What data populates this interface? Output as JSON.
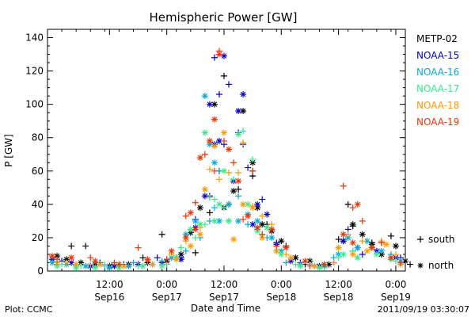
{
  "chart_data": {
    "type": "scatter",
    "title": "Hemispheric Power [GW]",
    "xlabel": "Date and Time",
    "ylabel": "P [GW]",
    "ylim": [
      0,
      145
    ],
    "xlim_hours": [
      0,
      75
    ],
    "yticks": [
      0,
      20,
      40,
      60,
      80,
      100,
      120,
      140
    ],
    "xticks": [
      {
        "t": 13,
        "time": "12:00",
        "date": "Sep16"
      },
      {
        "t": 25,
        "time": "0:00",
        "date": "Sep17"
      },
      {
        "t": 37,
        "time": "12:00",
        "date": "Sep17"
      },
      {
        "t": 49,
        "time": "0:00",
        "date": "Sep18"
      },
      {
        "t": 61,
        "time": "12:00",
        "date": "Sep18"
      },
      {
        "t": 73,
        "time": "0:00",
        "date": "Sep19"
      }
    ],
    "legend_position": "right",
    "series": [
      {
        "name": "METP-02",
        "color": "#000000",
        "south": [
          [
            5,
            15
          ],
          [
            8,
            15
          ],
          [
            20,
            8
          ],
          [
            24,
            22
          ],
          [
            27,
            8
          ],
          [
            31,
            11
          ],
          [
            34,
            35
          ],
          [
            36,
            60
          ],
          [
            37,
            117
          ],
          [
            38,
            40
          ],
          [
            40,
            49
          ],
          [
            43,
            57
          ],
          [
            46,
            28
          ],
          [
            50,
            15
          ],
          [
            54,
            4
          ],
          [
            58,
            3
          ],
          [
            61,
            19
          ],
          [
            63,
            40
          ],
          [
            64,
            27
          ],
          [
            68,
            17
          ],
          [
            72,
            21
          ],
          [
            76,
            4
          ]
        ],
        "north": [
          [
            2,
            9
          ],
          [
            4,
            7
          ],
          [
            7,
            5
          ],
          [
            10,
            4
          ],
          [
            13,
            3
          ],
          [
            17,
            4
          ],
          [
            21,
            5
          ],
          [
            25,
            6
          ],
          [
            28,
            10
          ],
          [
            30,
            23
          ],
          [
            32,
            38
          ],
          [
            35,
            100
          ],
          [
            37,
            38
          ],
          [
            39,
            48
          ],
          [
            41,
            96
          ],
          [
            43,
            65
          ],
          [
            44,
            38
          ],
          [
            45,
            28
          ],
          [
            47,
            24
          ],
          [
            49,
            18
          ],
          [
            52,
            8
          ],
          [
            55,
            6
          ],
          [
            59,
            4
          ],
          [
            62,
            18
          ],
          [
            64,
            28
          ],
          [
            66,
            22
          ],
          [
            68,
            16
          ],
          [
            70,
            10
          ],
          [
            73,
            15
          ],
          [
            75,
            6
          ]
        ]
      },
      {
        "name": "NOAA-15",
        "color": "#0000cc",
        "south": [
          [
            3,
            6
          ],
          [
            11,
            5
          ],
          [
            16,
            4
          ],
          [
            23,
            8
          ],
          [
            28,
            8
          ],
          [
            31,
            31
          ],
          [
            34,
            45
          ],
          [
            35,
            128
          ],
          [
            36,
            106
          ],
          [
            37,
            76
          ],
          [
            38,
            112
          ],
          [
            40,
            83
          ],
          [
            41,
            76
          ],
          [
            42,
            62
          ],
          [
            43,
            60
          ],
          [
            45,
            43
          ],
          [
            48,
            17
          ],
          [
            53,
            5
          ],
          [
            60,
            5
          ],
          [
            63,
            25
          ],
          [
            66,
            10
          ],
          [
            70,
            17
          ],
          [
            74,
            8
          ]
        ],
        "north": [
          [
            1,
            7
          ],
          [
            5,
            5
          ],
          [
            9,
            3
          ],
          [
            14,
            3
          ],
          [
            19,
            4
          ],
          [
            24,
            5
          ],
          [
            28,
            7
          ],
          [
            31,
            26
          ],
          [
            33,
            45
          ],
          [
            34,
            100
          ],
          [
            35,
            76
          ],
          [
            36,
            78
          ],
          [
            37,
            129
          ],
          [
            39,
            54
          ],
          [
            40,
            96
          ],
          [
            41,
            106
          ],
          [
            43,
            28
          ],
          [
            44,
            40
          ],
          [
            46,
            34
          ],
          [
            48,
            16
          ],
          [
            51,
            6
          ],
          [
            57,
            3
          ],
          [
            62,
            18
          ],
          [
            65,
            14
          ],
          [
            69,
            12
          ],
          [
            73,
            8
          ]
        ]
      },
      {
        "name": "NOAA-16",
        "color": "#00aadd",
        "south": [
          [
            2,
            4
          ],
          [
            6,
            3
          ],
          [
            12,
            3
          ],
          [
            18,
            5
          ],
          [
            24,
            6
          ],
          [
            29,
            12
          ],
          [
            32,
            20
          ],
          [
            34,
            30
          ],
          [
            35,
            38
          ],
          [
            36,
            60
          ],
          [
            38,
            30
          ],
          [
            40,
            45
          ],
          [
            42,
            28
          ],
          [
            44,
            25
          ],
          [
            46,
            20
          ],
          [
            50,
            5
          ],
          [
            56,
            3
          ],
          [
            60,
            8
          ],
          [
            64,
            12
          ],
          [
            68,
            14
          ],
          [
            72,
            10
          ]
        ],
        "north": [
          [
            1,
            5
          ],
          [
            4,
            4
          ],
          [
            8,
            3
          ],
          [
            13,
            2
          ],
          [
            17,
            3
          ],
          [
            22,
            4
          ],
          [
            26,
            8
          ],
          [
            29,
            22
          ],
          [
            31,
            30
          ],
          [
            33,
            105
          ],
          [
            34,
            76
          ],
          [
            35,
            65
          ],
          [
            36,
            30
          ],
          [
            38,
            40
          ],
          [
            40,
            30
          ],
          [
            42,
            34
          ],
          [
            44,
            30
          ],
          [
            47,
            20
          ],
          [
            49,
            12
          ],
          [
            53,
            4
          ],
          [
            58,
            3
          ],
          [
            61,
            10
          ],
          [
            63,
            20
          ],
          [
            65,
            14
          ],
          [
            67,
            18
          ],
          [
            70,
            12
          ],
          [
            74,
            6
          ]
        ]
      },
      {
        "name": "NOAA-17",
        "color": "#33ee88",
        "south": [
          [
            3,
            4
          ],
          [
            7,
            3
          ],
          [
            12,
            4
          ],
          [
            19,
            3
          ],
          [
            25,
            4
          ],
          [
            28,
            14
          ],
          [
            31,
            20
          ],
          [
            33,
            28
          ],
          [
            34,
            44
          ],
          [
            35,
            43
          ],
          [
            37,
            38
          ],
          [
            39,
            55
          ],
          [
            41,
            84
          ],
          [
            43,
            67
          ],
          [
            45,
            22
          ],
          [
            48,
            12
          ],
          [
            52,
            4
          ],
          [
            58,
            2
          ],
          [
            61,
            8
          ],
          [
            64,
            12
          ],
          [
            68,
            14
          ],
          [
            73,
            6
          ]
        ],
        "north": [
          [
            2,
            3
          ],
          [
            6,
            2
          ],
          [
            10,
            2
          ],
          [
            15,
            2
          ],
          [
            20,
            3
          ],
          [
            24,
            3
          ],
          [
            27,
            8
          ],
          [
            30,
            25
          ],
          [
            32,
            28
          ],
          [
            33,
            83
          ],
          [
            35,
            30
          ],
          [
            36,
            40
          ],
          [
            37,
            60
          ],
          [
            38,
            30
          ],
          [
            40,
            82
          ],
          [
            42,
            40
          ],
          [
            44,
            24
          ],
          [
            46,
            26
          ],
          [
            49,
            10
          ],
          [
            53,
            3
          ],
          [
            57,
            2
          ],
          [
            62,
            10
          ],
          [
            65,
            8
          ],
          [
            69,
            10
          ],
          [
            72,
            7
          ]
        ]
      },
      {
        "name": "NOAA-18",
        "color": "#ff9900",
        "south": [
          [
            4,
            5
          ],
          [
            9,
            4
          ],
          [
            15,
            4
          ],
          [
            21,
            6
          ],
          [
            26,
            10
          ],
          [
            29,
            18
          ],
          [
            32,
            26
          ],
          [
            34,
            61
          ],
          [
            36,
            55
          ],
          [
            38,
            59
          ],
          [
            40,
            59
          ],
          [
            41,
            77
          ],
          [
            43,
            39
          ],
          [
            45,
            33
          ],
          [
            47,
            28
          ],
          [
            50,
            10
          ],
          [
            55,
            4
          ],
          [
            60,
            5
          ],
          [
            63,
            22
          ],
          [
            66,
            18
          ],
          [
            70,
            18
          ],
          [
            73,
            10
          ]
        ],
        "north": [
          [
            2,
            5
          ],
          [
            6,
            4
          ],
          [
            11,
            4
          ],
          [
            16,
            3
          ],
          [
            22,
            4
          ],
          [
            27,
            7
          ],
          [
            30,
            15
          ],
          [
            32,
            22
          ],
          [
            33,
            49
          ],
          [
            35,
            75
          ],
          [
            37,
            83
          ],
          [
            39,
            19
          ],
          [
            41,
            40
          ],
          [
            43,
            38
          ],
          [
            45,
            20
          ],
          [
            48,
            12
          ],
          [
            51,
            8
          ],
          [
            56,
            3
          ],
          [
            61,
            14
          ],
          [
            64,
            10
          ],
          [
            67,
            12
          ],
          [
            71,
            16
          ],
          [
            74,
            4
          ]
        ]
      },
      {
        "name": "NOAA-19",
        "color": "#ee3300",
        "south": [
          [
            2,
            7
          ],
          [
            9,
            8
          ],
          [
            14,
            5
          ],
          [
            19,
            14
          ],
          [
            25,
            7
          ],
          [
            29,
            33
          ],
          [
            31,
            41
          ],
          [
            33,
            70
          ],
          [
            35,
            60
          ],
          [
            36,
            132
          ],
          [
            37,
            78
          ],
          [
            39,
            65
          ],
          [
            41,
            31
          ],
          [
            43,
            60
          ],
          [
            45,
            22
          ],
          [
            48,
            15
          ],
          [
            55,
            3
          ],
          [
            62,
            51
          ],
          [
            64,
            38
          ],
          [
            66,
            30
          ],
          [
            70,
            17
          ],
          [
            74,
            5
          ]
        ],
        "north": [
          [
            1,
            9
          ],
          [
            5,
            8
          ],
          [
            10,
            6
          ],
          [
            15,
            4
          ],
          [
            21,
            7
          ],
          [
            26,
            12
          ],
          [
            29,
            20
          ],
          [
            30,
            35
          ],
          [
            31,
            25
          ],
          [
            32,
            68
          ],
          [
            34,
            78
          ],
          [
            35,
            91
          ],
          [
            36,
            130
          ],
          [
            38,
            73
          ],
          [
            40,
            54
          ],
          [
            42,
            33
          ],
          [
            44,
            26
          ],
          [
            47,
            25
          ],
          [
            50,
            14
          ],
          [
            54,
            6
          ],
          [
            58,
            4
          ],
          [
            62,
            22
          ],
          [
            64,
            17
          ],
          [
            65,
            40
          ],
          [
            68,
            14
          ],
          [
            72,
            8
          ]
        ]
      }
    ],
    "legend_markers": [
      {
        "symbol": "+",
        "label": "south"
      },
      {
        "symbol": "*",
        "label": "north"
      }
    ]
  },
  "footer": {
    "left": "Plot: CCMC",
    "right": "2011/09/19 03:30:07"
  }
}
